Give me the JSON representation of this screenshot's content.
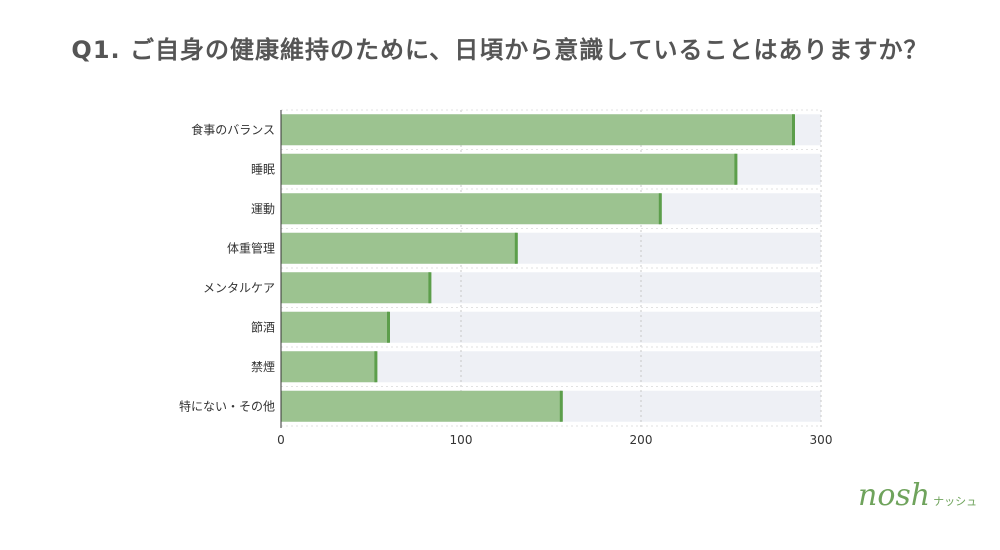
{
  "title": "Q1. ご自身の健康維持のために、日頃から意識していることはありますか？",
  "logo": {
    "main": "nosh",
    "kana": "ナッシュ"
  },
  "chart_data": {
    "type": "bar",
    "orientation": "horizontal",
    "categories": [
      "食事のバランス",
      "睡眠",
      "運動",
      "体重管理",
      "メンタルケア",
      "節酒",
      "禁煙",
      "特にない・その他"
    ],
    "values": [
      285,
      253,
      211,
      131,
      83,
      60,
      53,
      156
    ],
    "xlim": [
      0,
      300
    ],
    "xticks": [
      0,
      100,
      200,
      300
    ],
    "grid": true,
    "colors": {
      "bar": "#9cc390",
      "bar_edge": "#5c9e4b",
      "track": "#eef0f5"
    }
  }
}
